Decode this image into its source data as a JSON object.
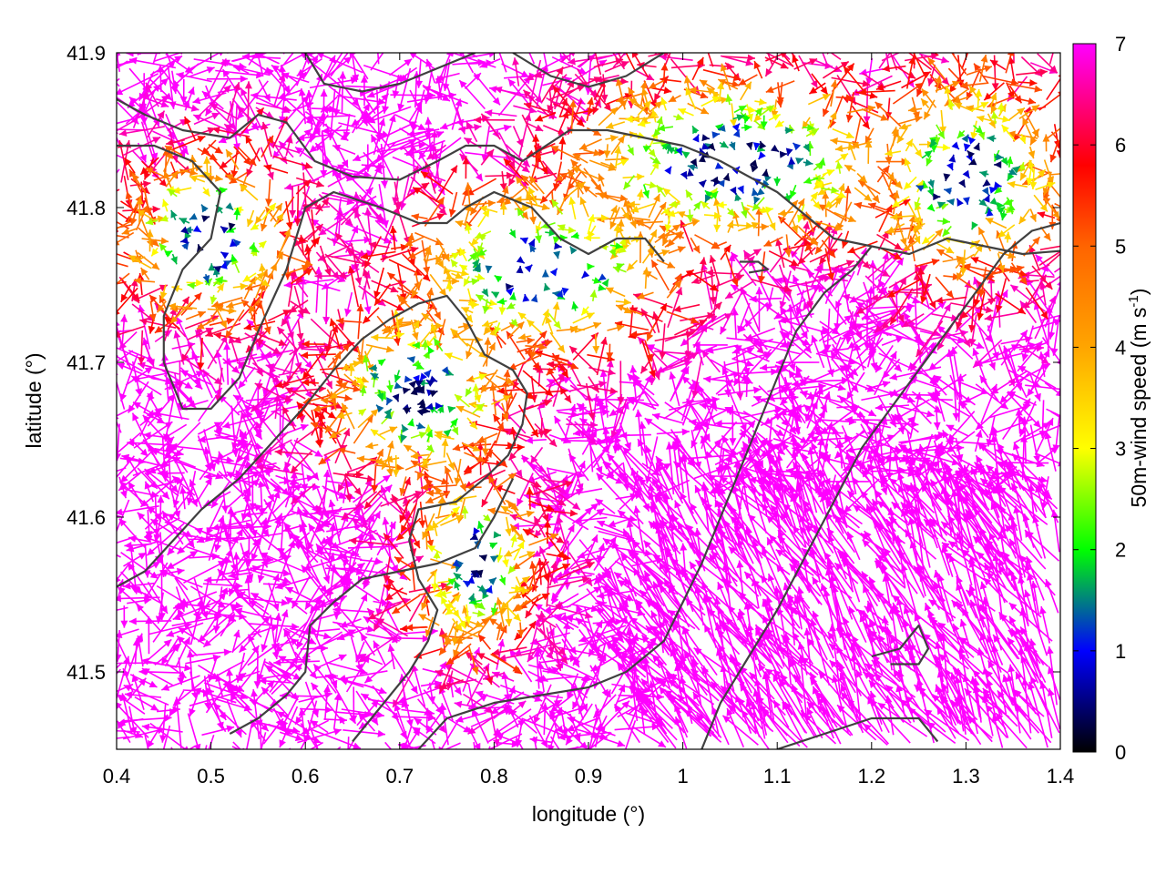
{
  "chart_data": {
    "type": "vector_field",
    "xlabel": "longitude (°)",
    "ylabel": "latitude (°)",
    "xlim": [
      0.4,
      1.4
    ],
    "ylim": [
      41.45,
      41.9
    ],
    "x_ticks": [
      0.4,
      0.5,
      0.6,
      0.7,
      0.8,
      0.9,
      1.0,
      1.1,
      1.2,
      1.3,
      1.4
    ],
    "x_tick_labels": [
      "0.4",
      "0.5",
      "0.6",
      "0.7",
      "0.8",
      "0.9",
      "1",
      "1.1",
      "1.2",
      "1.3",
      "1.4"
    ],
    "y_ticks": [
      41.5,
      41.6,
      41.7,
      41.8,
      41.9
    ],
    "y_tick_labels": [
      "41.5",
      "41.6",
      "41.7",
      "41.8",
      "41.9"
    ],
    "colorbar": {
      "label_prefix": "50m-wind speed (m s",
      "label_exponent": "-1",
      "label_suffix": ")",
      "range": [
        0,
        7
      ],
      "ticks": [
        0,
        1,
        2,
        3,
        4,
        5,
        6,
        7
      ],
      "tick_labels": [
        "0",
        "1",
        "2",
        "3",
        "4",
        "5",
        "6",
        "7"
      ],
      "stops": [
        {
          "value": 0,
          "color": "#000000"
        },
        {
          "value": 1,
          "color": "#0000ff"
        },
        {
          "value": 1.5,
          "color": "#008080"
        },
        {
          "value": 2,
          "color": "#00ff00"
        },
        {
          "value": 3,
          "color": "#ffff00"
        },
        {
          "value": 4,
          "color": "#ffa500"
        },
        {
          "value": 5,
          "color": "#ff6400"
        },
        {
          "value": 5.8,
          "color": "#ff0000"
        },
        {
          "value": 7,
          "color": "#ff00ff"
        }
      ]
    },
    "contour_color": "#404040",
    "contours": [
      [
        [
          0.4,
          41.87
        ],
        [
          0.43,
          41.86
        ],
        [
          0.47,
          41.85
        ],
        [
          0.52,
          41.845
        ],
        [
          0.55,
          41.86
        ],
        [
          0.58,
          41.855
        ],
        [
          0.61,
          41.83
        ],
        [
          0.65,
          41.82
        ],
        [
          0.7,
          41.818
        ],
        [
          0.74,
          41.83
        ],
        [
          0.77,
          41.84
        ],
        [
          0.8,
          41.84
        ],
        [
          0.83,
          41.83
        ],
        [
          0.85,
          41.838
        ],
        [
          0.88,
          41.85
        ],
        [
          0.92,
          41.85
        ],
        [
          0.96,
          41.845
        ],
        [
          1.0,
          41.84
        ],
        [
          1.04,
          41.83
        ],
        [
          1.07,
          41.82
        ],
        [
          1.1,
          41.81
        ],
        [
          1.13,
          41.795
        ],
        [
          1.16,
          41.78
        ],
        [
          1.2,
          41.775
        ],
        [
          1.24,
          41.77
        ],
        [
          1.28,
          41.78
        ],
        [
          1.32,
          41.775
        ],
        [
          1.36,
          41.77
        ],
        [
          1.4,
          41.772
        ]
      ],
      [
        [
          0.4,
          41.84
        ],
        [
          0.44,
          41.84
        ],
        [
          0.48,
          41.83
        ],
        [
          0.51,
          41.81
        ],
        [
          0.5,
          41.78
        ],
        [
          0.47,
          41.76
        ],
        [
          0.45,
          41.73
        ],
        [
          0.45,
          41.7
        ],
        [
          0.47,
          41.67
        ],
        [
          0.5,
          41.67
        ],
        [
          0.53,
          41.69
        ],
        [
          0.55,
          41.72
        ],
        [
          0.58,
          41.76
        ],
        [
          0.6,
          41.8
        ],
        [
          0.63,
          41.81
        ],
        [
          0.68,
          41.8
        ],
        [
          0.72,
          41.79
        ],
        [
          0.75,
          41.79
        ],
        [
          0.77,
          41.8
        ],
        [
          0.8,
          41.81
        ],
        [
          0.84,
          41.8
        ],
        [
          0.87,
          41.78
        ],
        [
          0.9,
          41.77
        ],
        [
          0.93,
          41.78
        ],
        [
          0.96,
          41.78
        ],
        [
          0.98,
          41.765
        ]
      ],
      [
        [
          0.6,
          41.9
        ],
        [
          0.62,
          41.88
        ],
        [
          0.66,
          41.875
        ],
        [
          0.7,
          41.88
        ],
        [
          0.74,
          41.89
        ],
        [
          0.78,
          41.9
        ]
      ],
      [
        [
          0.82,
          41.9
        ],
        [
          0.86,
          41.885
        ],
        [
          0.9,
          41.878
        ],
        [
          0.94,
          41.885
        ],
        [
          0.98,
          41.9
        ]
      ],
      [
        [
          0.4,
          41.555
        ],
        [
          0.43,
          41.565
        ],
        [
          0.46,
          41.585
        ],
        [
          0.49,
          41.605
        ],
        [
          0.53,
          41.625
        ],
        [
          0.56,
          41.645
        ],
        [
          0.6,
          41.672
        ],
        [
          0.63,
          41.695
        ],
        [
          0.66,
          41.715
        ],
        [
          0.69,
          41.728
        ],
        [
          0.72,
          41.738
        ],
        [
          0.75,
          41.743
        ],
        [
          0.77,
          41.728
        ],
        [
          0.79,
          41.705
        ],
        [
          0.82,
          41.695
        ],
        [
          0.835,
          41.68
        ],
        [
          0.83,
          41.66
        ],
        [
          0.815,
          41.64
        ],
        [
          0.79,
          41.625
        ],
        [
          0.76,
          41.61
        ],
        [
          0.72,
          41.605
        ],
        [
          0.71,
          41.585
        ],
        [
          0.72,
          41.56
        ],
        [
          0.74,
          41.54
        ],
        [
          0.73,
          41.52
        ],
        [
          0.71,
          41.5
        ],
        [
          0.69,
          41.485
        ],
        [
          0.67,
          41.47
        ],
        [
          0.65,
          41.455
        ]
      ],
      [
        [
          0.52,
          41.46
        ],
        [
          0.55,
          41.47
        ],
        [
          0.58,
          41.485
        ],
        [
          0.6,
          41.5
        ],
        [
          0.605,
          41.53
        ],
        [
          0.63,
          41.545
        ],
        [
          0.66,
          41.56
        ],
        [
          0.7,
          41.565
        ],
        [
          0.74,
          41.57
        ],
        [
          0.78,
          41.58
        ],
        [
          0.8,
          41.6
        ],
        [
          0.82,
          41.625
        ]
      ],
      [
        [
          0.72,
          41.45
        ],
        [
          0.75,
          41.47
        ],
        [
          0.8,
          41.48
        ],
        [
          0.85,
          41.485
        ],
        [
          0.9,
          41.49
        ],
        [
          0.94,
          41.5
        ],
        [
          0.98,
          41.52
        ],
        [
          1.0,
          41.545
        ],
        [
          1.02,
          41.57
        ],
        [
          1.04,
          41.6
        ],
        [
          1.06,
          41.63
        ],
        [
          1.08,
          41.66
        ],
        [
          1.1,
          41.69
        ],
        [
          1.12,
          41.72
        ],
        [
          1.15,
          41.745
        ],
        [
          1.18,
          41.76
        ],
        [
          1.2,
          41.775
        ]
      ],
      [
        [
          1.02,
          41.45
        ],
        [
          1.04,
          41.48
        ],
        [
          1.07,
          41.51
        ],
        [
          1.1,
          41.54
        ],
        [
          1.13,
          41.575
        ],
        [
          1.16,
          41.61
        ],
        [
          1.19,
          41.645
        ],
        [
          1.22,
          41.67
        ],
        [
          1.25,
          41.695
        ],
        [
          1.28,
          41.72
        ],
        [
          1.31,
          41.745
        ],
        [
          1.34,
          41.77
        ],
        [
          1.37,
          41.785
        ],
        [
          1.4,
          41.79
        ]
      ],
      [
        [
          1.1,
          41.45
        ],
        [
          1.15,
          41.46
        ],
        [
          1.2,
          41.47
        ],
        [
          1.25,
          41.47
        ],
        [
          1.27,
          41.455
        ]
      ],
      [
        [
          1.2,
          41.51
        ],
        [
          1.23,
          41.515
        ],
        [
          1.25,
          41.53
        ],
        [
          1.26,
          41.515
        ],
        [
          1.25,
          41.505
        ],
        [
          1.22,
          41.505
        ]
      ],
      [
        [
          1.06,
          41.765
        ],
        [
          1.08,
          41.765
        ],
        [
          1.09,
          41.76
        ],
        [
          1.07,
          41.758
        ]
      ]
    ]
  }
}
